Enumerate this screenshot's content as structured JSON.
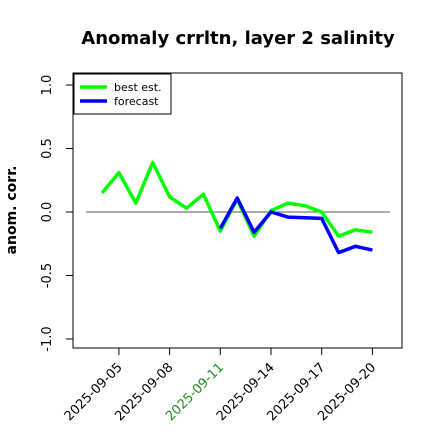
{
  "chart_data": {
    "type": "line",
    "title": "Anomaly crrltn, layer 2 salinity",
    "xlabel": "",
    "ylabel": "anom. corr.",
    "ylim": [
      -1.0,
      1.0
    ],
    "yticks": [
      "-1.0",
      "-0.5",
      "0.0",
      "0.5",
      "1.0"
    ],
    "ytick_values": [
      -1.0,
      -0.5,
      0.0,
      0.5,
      1.0
    ],
    "x": [
      "2025-09-04",
      "2025-09-05",
      "2025-09-06",
      "2025-09-07",
      "2025-09-08",
      "2025-09-09",
      "2025-09-10",
      "2025-09-11",
      "2025-09-12",
      "2025-09-13",
      "2025-09-14",
      "2025-09-15",
      "2025-09-16",
      "2025-09-17",
      "2025-09-18",
      "2025-09-19",
      "2025-09-20"
    ],
    "xticks": [
      "2025-09-05",
      "2025-09-08",
      "2025-09-11",
      "2025-09-14",
      "2025-09-17",
      "2025-09-20"
    ],
    "highlight_tick": "2025-09-11",
    "highlight_color": "#228b22",
    "reference_line": 0.0,
    "series": [
      {
        "name": "best est.",
        "color": "#00ff00",
        "x": [
          "2025-09-04",
          "2025-09-05",
          "2025-09-06",
          "2025-09-07",
          "2025-09-08",
          "2025-09-09",
          "2025-09-10",
          "2025-09-11",
          "2025-09-12",
          "2025-09-13",
          "2025-09-14",
          "2025-09-15",
          "2025-09-16",
          "2025-09-17",
          "2025-09-18",
          "2025-09-19",
          "2025-09-20"
        ],
        "values": [
          0.15,
          0.31,
          0.07,
          0.39,
          0.12,
          0.03,
          0.14,
          -0.15,
          0.1,
          -0.19,
          0.01,
          0.07,
          0.05,
          0.0,
          -0.19,
          -0.14,
          -0.16
        ]
      },
      {
        "name": "forecast",
        "color": "#0000ff",
        "x": [
          "2025-09-11",
          "2025-09-12",
          "2025-09-13",
          "2025-09-14",
          "2025-09-15",
          "2025-09-16",
          "2025-09-17",
          "2025-09-18",
          "2025-09-19",
          "2025-09-20"
        ],
        "values": [
          -0.13,
          0.11,
          -0.16,
          0.0,
          -0.04,
          -0.045,
          -0.05,
          -0.32,
          -0.27,
          -0.3
        ]
      }
    ],
    "legend_position": "top-left",
    "grid": false
  }
}
